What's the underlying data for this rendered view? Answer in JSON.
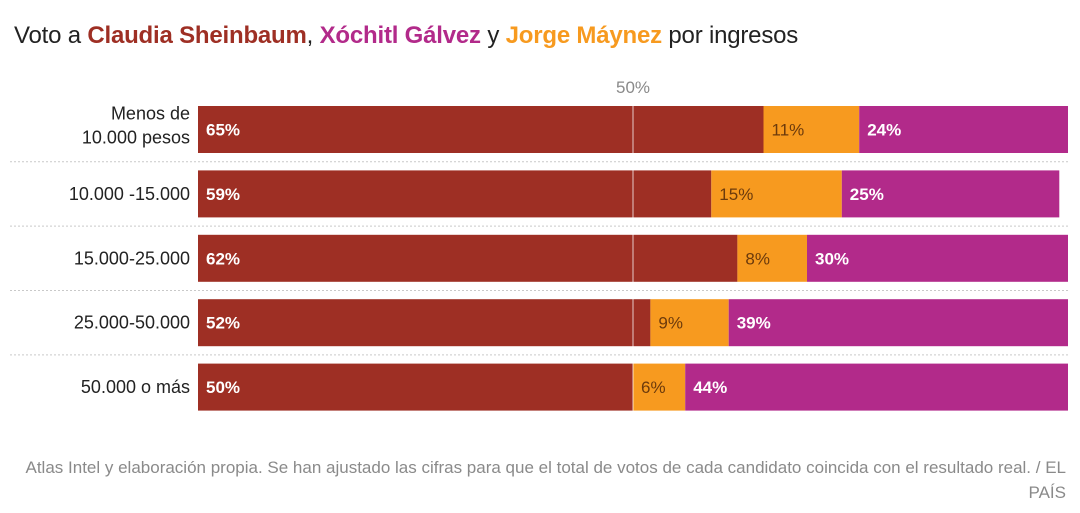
{
  "title": {
    "prefix": "Voto a ",
    "name1": "Claudia Sheinbaum",
    "sep1": ", ",
    "name2": "Xóchitl Gálvez",
    "sep2": " y ",
    "name3": "Jorge Máynez",
    "suffix": " por ingresos"
  },
  "colors": {
    "sheinbaum": "#9e2f24",
    "maynez": "#f79a1f",
    "galvez": "#b22a8a",
    "label_light": "#ffffff",
    "label_dark": "#6b3a0c"
  },
  "chart_data": {
    "type": "bar",
    "stacked": true,
    "orientation": "horizontal",
    "reference_line": {
      "value": 50,
      "label": "50%"
    },
    "xlim": [
      0,
      100
    ],
    "categories": [
      [
        "Menos de",
        "10.000 pesos"
      ],
      [
        "10.000 -15.000"
      ],
      [
        "15.000-25.000"
      ],
      [
        "25.000-50.000"
      ],
      [
        "50.000 o más"
      ]
    ],
    "series": [
      {
        "key": "sheinbaum",
        "values": [
          65,
          59,
          62,
          52,
          50
        ],
        "labels": [
          "65%",
          "59%",
          "62%",
          "52%",
          "50%"
        ]
      },
      {
        "key": "maynez",
        "values": [
          11,
          15,
          8,
          9,
          6
        ],
        "labels": [
          "11%",
          "15%",
          "8%",
          "9%",
          "6%"
        ]
      },
      {
        "key": "galvez",
        "values": [
          24,
          25,
          30,
          39,
          44
        ],
        "labels": [
          "24%",
          "25%",
          "30%",
          "39%",
          "44%"
        ]
      }
    ]
  },
  "source": "Atlas Intel y elaboración propia. Se han ajustado las cifras para que el total de votos de cada candidato coincida con el resultado real. / EL PAÍS"
}
